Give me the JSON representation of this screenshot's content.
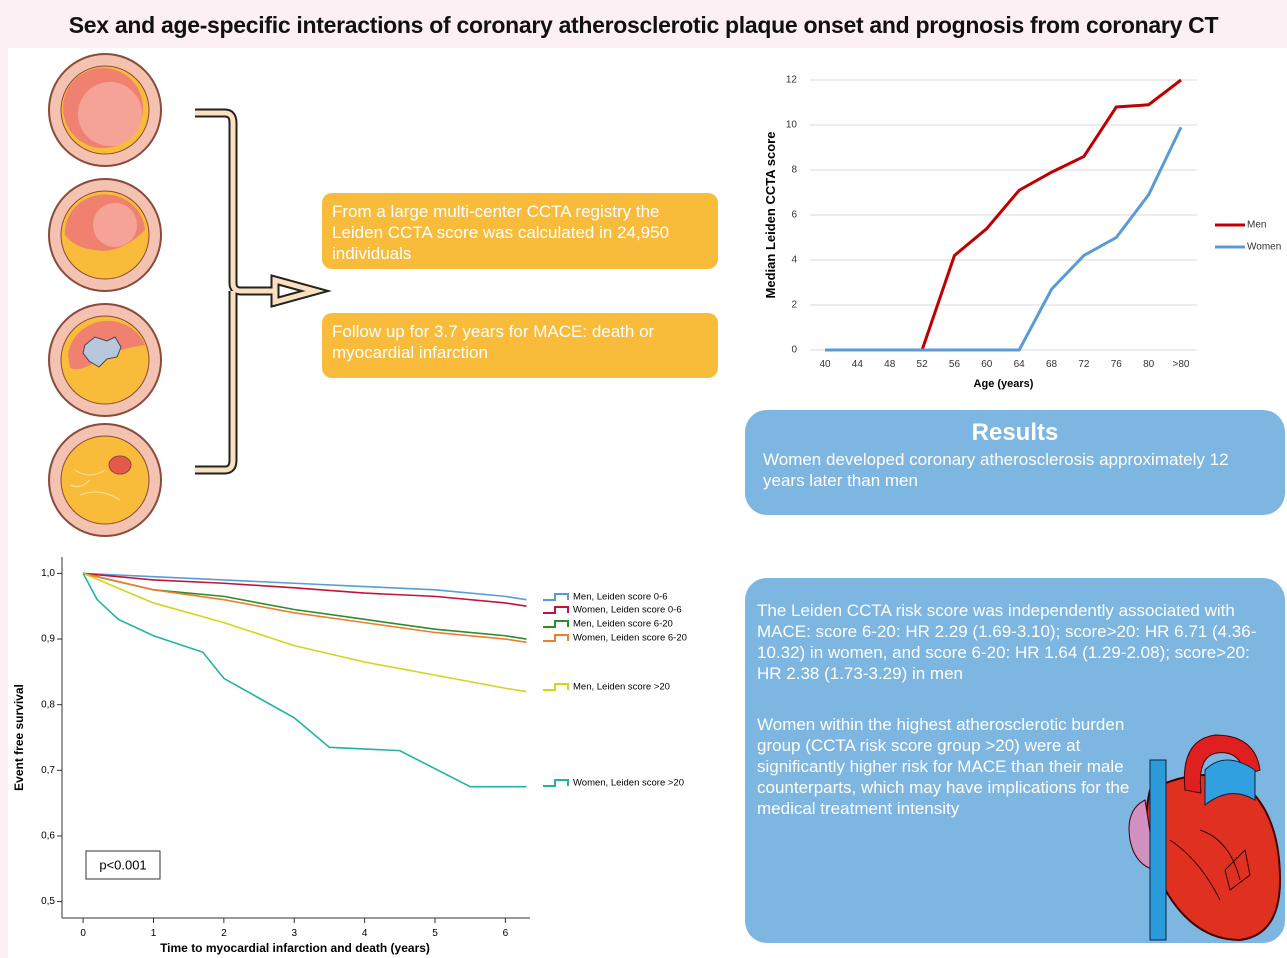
{
  "title": "Sex and age-specific interactions of coronary atherosclerotic plaque onset and prognosis from coronary CT",
  "boxes": [
    "From a large multi-center CCTA registry the Leiden CCTA score was calculated in 24,950 individuals",
    "Follow up for 3.7 years for MACE: death or myocardial infarction"
  ],
  "results": {
    "title": "Results",
    "text": "Women developed coronary atherosclerosis approximately 12 years later than men"
  },
  "findings": [
    "The Leiden CCTA risk score was independently associated with MACE: score 6-20: HR 2.29 (1.69-3.10); score>20: HR 6.71 (4.36-10.32) in women, and score 6-20: HR 1.64 (1.29-2.08); score>20: HR 2.38 (1.73-3.29) in men",
    "Women within the highest atherosclerotic burden group (CCTA risk score group >20) were at significantly higher risk for MACE than their male counterparts, which may have implications for the medical treatment intensity"
  ],
  "chart_data": [
    {
      "type": "line",
      "x_label": "Age (years)",
      "y_label": "Median Leiden CCTA score",
      "categories": [
        "40",
        "44",
        "48",
        "52",
        "56",
        "60",
        "64",
        "68",
        "72",
        "76",
        "80",
        ">80"
      ],
      "series": [
        {
          "name": "Men",
          "color": "#c00000",
          "values": [
            0,
            0,
            0,
            0,
            4.2,
            5.4,
            7.1,
            7.9,
            8.6,
            10.8,
            10.9,
            12
          ]
        },
        {
          "name": "Women",
          "color": "#5b9bd5",
          "values": [
            0,
            0,
            0,
            0,
            0,
            0,
            0,
            2.7,
            4.2,
            5,
            6.9,
            9.9
          ]
        }
      ],
      "ylim": [
        0,
        12
      ],
      "yticks": [
        0,
        2,
        4,
        6,
        8,
        10,
        12
      ],
      "grid": true,
      "legend": "right"
    },
    {
      "type": "step",
      "x_label": "Time to myocardial infarction and death (years)",
      "y_label": "Event free survival",
      "annotation": "p<0.001",
      "xlim": [
        -0.3,
        6.35
      ],
      "xticks": [
        0,
        1,
        2,
        3,
        4,
        5,
        6
      ],
      "ylim": [
        0.475,
        1.025
      ],
      "yticks": [
        {
          "value": 0.5,
          "label": "0,5"
        },
        {
          "value": 0.6,
          "label": "0,6"
        },
        {
          "value": 0.7,
          "label": "0,7"
        },
        {
          "value": 0.8,
          "label": "0,8"
        },
        {
          "value": 0.9,
          "label": "0,9"
        },
        {
          "value": 1.0,
          "label": "1,0"
        }
      ],
      "series": [
        {
          "name": "Men, Leiden score 0-6",
          "color": "#5b9bd5",
          "x": [
            0,
            1,
            2,
            3,
            4,
            5,
            6,
            6.3
          ],
          "values": [
            1,
            0.995,
            0.99,
            0.985,
            0.98,
            0.975,
            0.965,
            0.96
          ]
        },
        {
          "name": "Women, Leiden score 0-6",
          "color": "#c0143c",
          "x": [
            0,
            1,
            2,
            3,
            4,
            5,
            6,
            6.3
          ],
          "values": [
            1,
            0.99,
            0.985,
            0.978,
            0.97,
            0.965,
            0.955,
            0.95
          ]
        },
        {
          "name": "Men, Leiden score 6-20",
          "color": "#2e8b2e",
          "x": [
            0,
            1,
            2,
            3,
            4,
            5,
            6,
            6.3
          ],
          "values": [
            1,
            0.975,
            0.965,
            0.945,
            0.93,
            0.915,
            0.905,
            0.9
          ]
        },
        {
          "name": "Women, Leiden score 6-20",
          "color": "#ed7d31",
          "x": [
            0,
            1,
            2,
            3,
            4,
            5,
            6,
            6.3
          ],
          "values": [
            1,
            0.975,
            0.96,
            0.94,
            0.925,
            0.91,
            0.9,
            0.895
          ]
        },
        {
          "name": "Men, Leiden score >20",
          "color": "#d4d41e",
          "x": [
            0,
            1,
            2,
            3,
            4,
            5,
            6,
            6.3
          ],
          "values": [
            1,
            0.955,
            0.925,
            0.89,
            0.865,
            0.845,
            0.825,
            0.82
          ]
        },
        {
          "name": "Women, Leiden score >20",
          "color": "#20b2aa",
          "x": [
            0,
            0.2,
            0.5,
            1,
            1.7,
            2,
            2.5,
            3,
            3.5,
            4.5,
            5.5,
            6.3
          ],
          "values": [
            1,
            0.96,
            0.93,
            0.905,
            0.88,
            0.84,
            0.81,
            0.78,
            0.735,
            0.73,
            0.675,
            0.675
          ]
        }
      ]
    }
  ]
}
